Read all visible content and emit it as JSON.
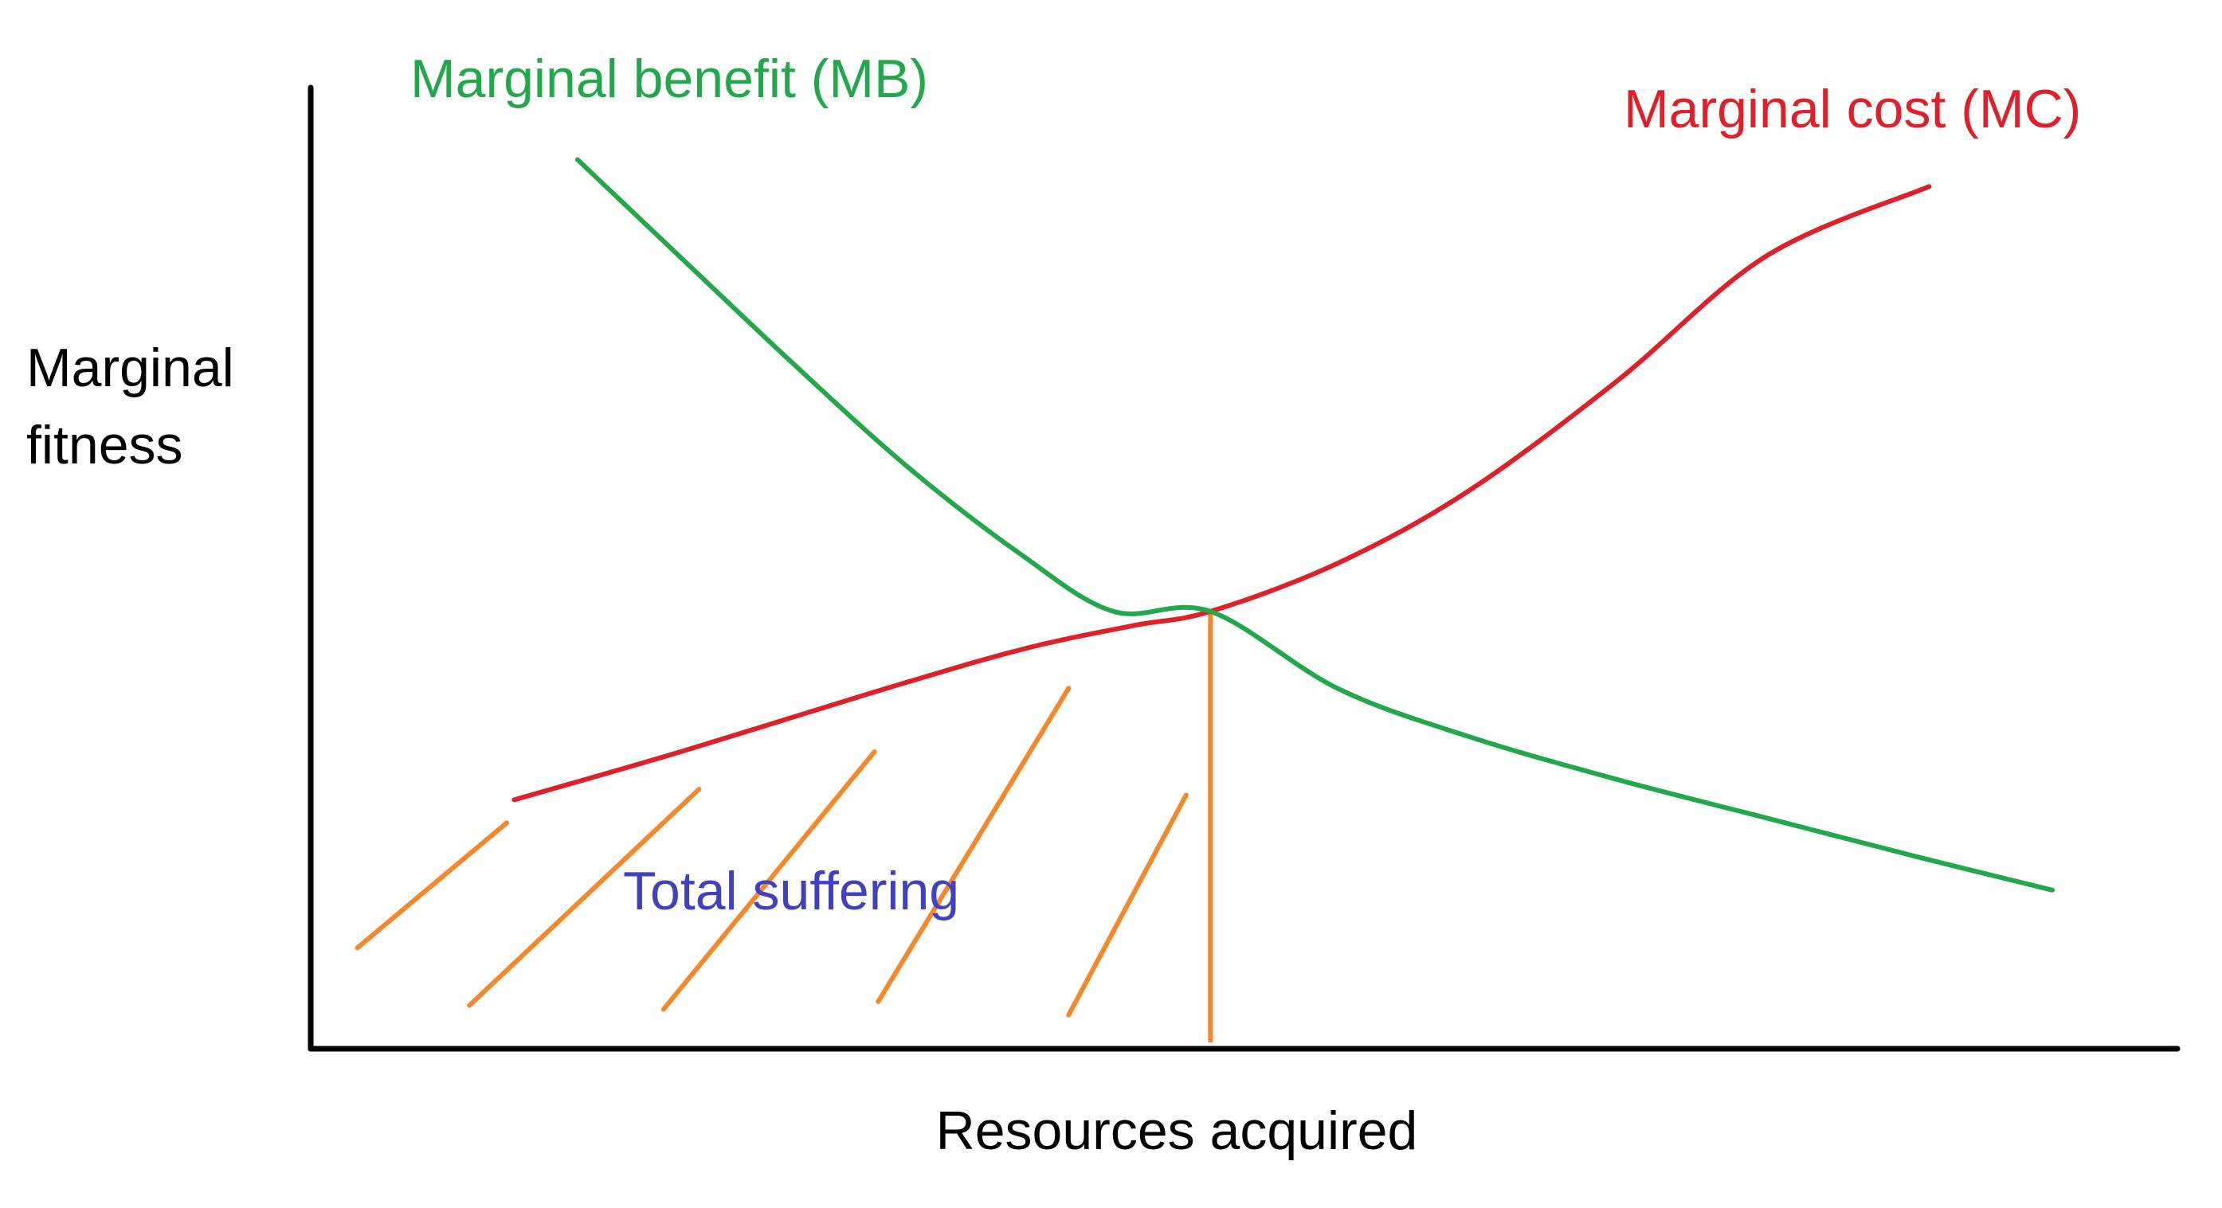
{
  "chart_data": {
    "type": "line",
    "title": "",
    "xlabel": "Resources acquired",
    "ylabel_lines": [
      "Marginal",
      "fitness"
    ],
    "grid": false,
    "ticks": false,
    "xlim": [
      0,
      100
    ],
    "ylim": [
      0,
      100
    ],
    "series": [
      {
        "name": "Marginal benefit (MB)",
        "color": "#22a84a",
        "x": [
          14.3,
          20,
          26,
          32,
          38,
          43,
          48.2,
          55,
          62,
          70,
          78,
          86,
          93.3
        ],
        "y": [
          92.5,
          82,
          71,
          60.5,
          51.5,
          45.5,
          45.5,
          37.5,
          32.5,
          28,
          24,
          20,
          16.5
        ]
      },
      {
        "name": "Marginal cost (MC)",
        "color": "#e02028",
        "x": [
          10.9,
          20,
          30,
          38,
          44,
          48.2,
          55,
          62,
          70,
          78,
          86.7
        ],
        "y": [
          25.9,
          31,
          37,
          41.5,
          44,
          45.5,
          50.5,
          58,
          69.5,
          82.5,
          89.7
        ]
      }
    ],
    "intersection": {
      "x": 48.2,
      "y": 45.5
    },
    "annotations": [
      {
        "text": "Total suffering",
        "color": "#4040c0",
        "hatch_color": "#f5882a",
        "hatch_lines": [
          {
            "x1": 2.5,
            "y1": 10.5,
            "x2": 10.5,
            "y2": 23.5
          },
          {
            "x1": 8.5,
            "y1": 4.5,
            "x2": 20.8,
            "y2": 27.0
          },
          {
            "x1": 18.9,
            "y1": 4.1,
            "x2": 30.2,
            "y2": 30.9
          },
          {
            "x1": 30.4,
            "y1": 4.9,
            "x2": 40.6,
            "y2": 37.5
          },
          {
            "x1": 40.6,
            "y1": 3.5,
            "x2": 46.9,
            "y2": 26.4
          }
        ]
      }
    ]
  }
}
